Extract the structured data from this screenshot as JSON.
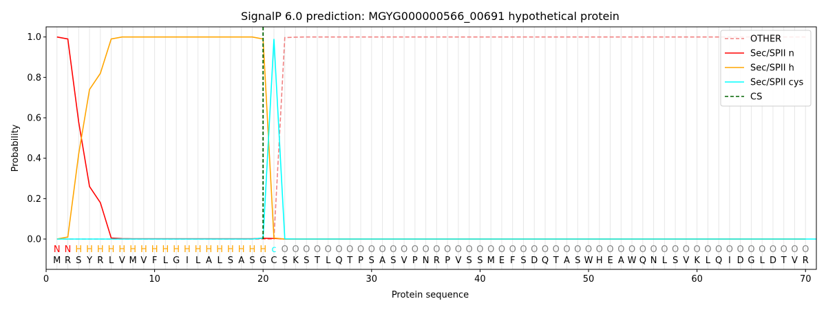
{
  "chart_data": {
    "type": "line",
    "title": "SignalP 6.0 prediction: MGYG000000566_00691 hypothetical protein",
    "xlabel": "Protein sequence",
    "ylabel": "Probability",
    "xlim": [
      0,
      71
    ],
    "ylim": [
      -0.15,
      1.05
    ],
    "x_ticks": [
      0,
      10,
      20,
      30,
      40,
      50,
      60,
      70
    ],
    "y_ticks": [
      "0.0",
      "0.2",
      "0.4",
      "0.6",
      "0.8",
      "1.0"
    ],
    "y_tick_values": [
      0,
      0.2,
      0.4,
      0.6,
      0.8,
      1.0
    ],
    "legend_position": "top-right",
    "vertical_gridlines": "every residue",
    "sequence": [
      "M",
      "R",
      "S",
      "Y",
      "R",
      "L",
      "V",
      "M",
      "V",
      "F",
      "L",
      "G",
      "I",
      "L",
      "A",
      "L",
      "S",
      "A",
      "S",
      "G",
      "C",
      "S",
      "K",
      "S",
      "T",
      "L",
      "Q",
      "T",
      "P",
      "S",
      "A",
      "S",
      "V",
      "P",
      "N",
      "R",
      "P",
      "V",
      "S",
      "S",
      "M",
      "E",
      "F",
      "S",
      "D",
      "Q",
      "T",
      "A",
      "S",
      "W",
      "H",
      "E",
      "A",
      "W",
      "Q",
      "N",
      "L",
      "S",
      "V",
      "K",
      "L",
      "Q",
      "I",
      "D",
      "G",
      "L",
      "D",
      "T",
      "V",
      "R"
    ],
    "predicted_labels": [
      "N",
      "N",
      "H",
      "H",
      "H",
      "H",
      "H",
      "H",
      "H",
      "H",
      "H",
      "H",
      "H",
      "H",
      "H",
      "H",
      "H",
      "H",
      "H",
      "H",
      "c",
      "O",
      "O",
      "O",
      "O",
      "O",
      "O",
      "O",
      "O",
      "O",
      "O",
      "O",
      "O",
      "O",
      "O",
      "O",
      "O",
      "O",
      "O",
      "O",
      "O",
      "O",
      "O",
      "O",
      "O",
      "O",
      "O",
      "O",
      "O",
      "O",
      "O",
      "O",
      "O",
      "O",
      "O",
      "O",
      "O",
      "O",
      "O",
      "O",
      "O",
      "O",
      "O",
      "O",
      "O",
      "O",
      "O",
      "O",
      "O",
      "O"
    ],
    "label_colors": {
      "N": "#ff0000",
      "H": "#ffa500",
      "c": "#00ffff",
      "O": "#808080"
    },
    "cleavage_site": 20,
    "series": [
      {
        "name": "OTHER",
        "color": "#f08080",
        "dash": "dashed",
        "values": [
          0,
          0,
          0,
          0,
          0,
          0,
          0,
          0,
          0,
          0,
          0,
          0,
          0,
          0,
          0,
          0,
          0,
          0,
          0,
          0,
          0,
          0.997,
          0.999,
          1,
          1,
          1,
          1,
          1,
          1,
          1,
          1,
          1,
          1,
          1,
          1,
          1,
          1,
          1,
          1,
          1,
          1,
          1,
          1,
          1,
          1,
          1,
          1,
          1,
          1,
          1,
          1,
          1,
          1,
          1,
          1,
          1,
          1,
          1,
          1,
          1,
          1,
          1,
          1,
          1,
          1,
          1,
          1,
          1,
          1,
          1
        ]
      },
      {
        "name": "Sec/SPII n",
        "color": "#ff0000",
        "dash": "solid",
        "values": [
          1.0,
          0.99,
          0.58,
          0.26,
          0.18,
          0.005,
          0.002,
          0.001,
          0.001,
          0.001,
          0.001,
          0.001,
          0.001,
          0.001,
          0.001,
          0.001,
          0.001,
          0.001,
          0.001,
          0.004,
          0.003,
          0,
          0,
          0,
          0,
          0,
          0,
          0,
          0,
          0,
          0,
          0,
          0,
          0,
          0,
          0,
          0,
          0,
          0,
          0,
          0,
          0,
          0,
          0,
          0,
          0,
          0,
          0,
          0,
          0,
          0,
          0,
          0,
          0,
          0,
          0,
          0,
          0,
          0,
          0,
          0,
          0,
          0,
          0,
          0,
          0,
          0,
          0,
          0,
          0
        ]
      },
      {
        "name": "Sec/SPII h",
        "color": "#ffa500",
        "dash": "solid",
        "values": [
          0,
          0.01,
          0.42,
          0.74,
          0.82,
          0.99,
          1.0,
          1.0,
          1.0,
          1.0,
          1.0,
          1.0,
          1.0,
          1.0,
          1.0,
          1.0,
          1.0,
          1.0,
          1.0,
          0.99,
          0.005,
          0,
          0,
          0,
          0,
          0,
          0,
          0,
          0,
          0,
          0,
          0,
          0,
          0,
          0,
          0,
          0,
          0,
          0,
          0,
          0,
          0,
          0,
          0,
          0,
          0,
          0,
          0,
          0,
          0,
          0,
          0,
          0,
          0,
          0,
          0,
          0,
          0,
          0,
          0,
          0,
          0,
          0,
          0,
          0,
          0,
          0,
          0,
          0,
          0
        ]
      },
      {
        "name": "Sec/SPII cys",
        "color": "#00ffff",
        "dash": "solid",
        "values": [
          0,
          0,
          0,
          0,
          0,
          0,
          0,
          0,
          0,
          0,
          0,
          0,
          0,
          0,
          0,
          0,
          0,
          0,
          0,
          0.005,
          0.99,
          0.001,
          0,
          0,
          0,
          0,
          0,
          0,
          0,
          0,
          0,
          0,
          0,
          0,
          0,
          0,
          0,
          0,
          0,
          0,
          0,
          0,
          0,
          0,
          0,
          0,
          0,
          0,
          0,
          0,
          0,
          0,
          0,
          0,
          0,
          0,
          0,
          0,
          0,
          0,
          0,
          0,
          0,
          0,
          0,
          0,
          0,
          0,
          0,
          0,
          0
        ]
      },
      {
        "name": "CS",
        "color": "#006400",
        "dash": "dashed",
        "values": []
      }
    ]
  }
}
